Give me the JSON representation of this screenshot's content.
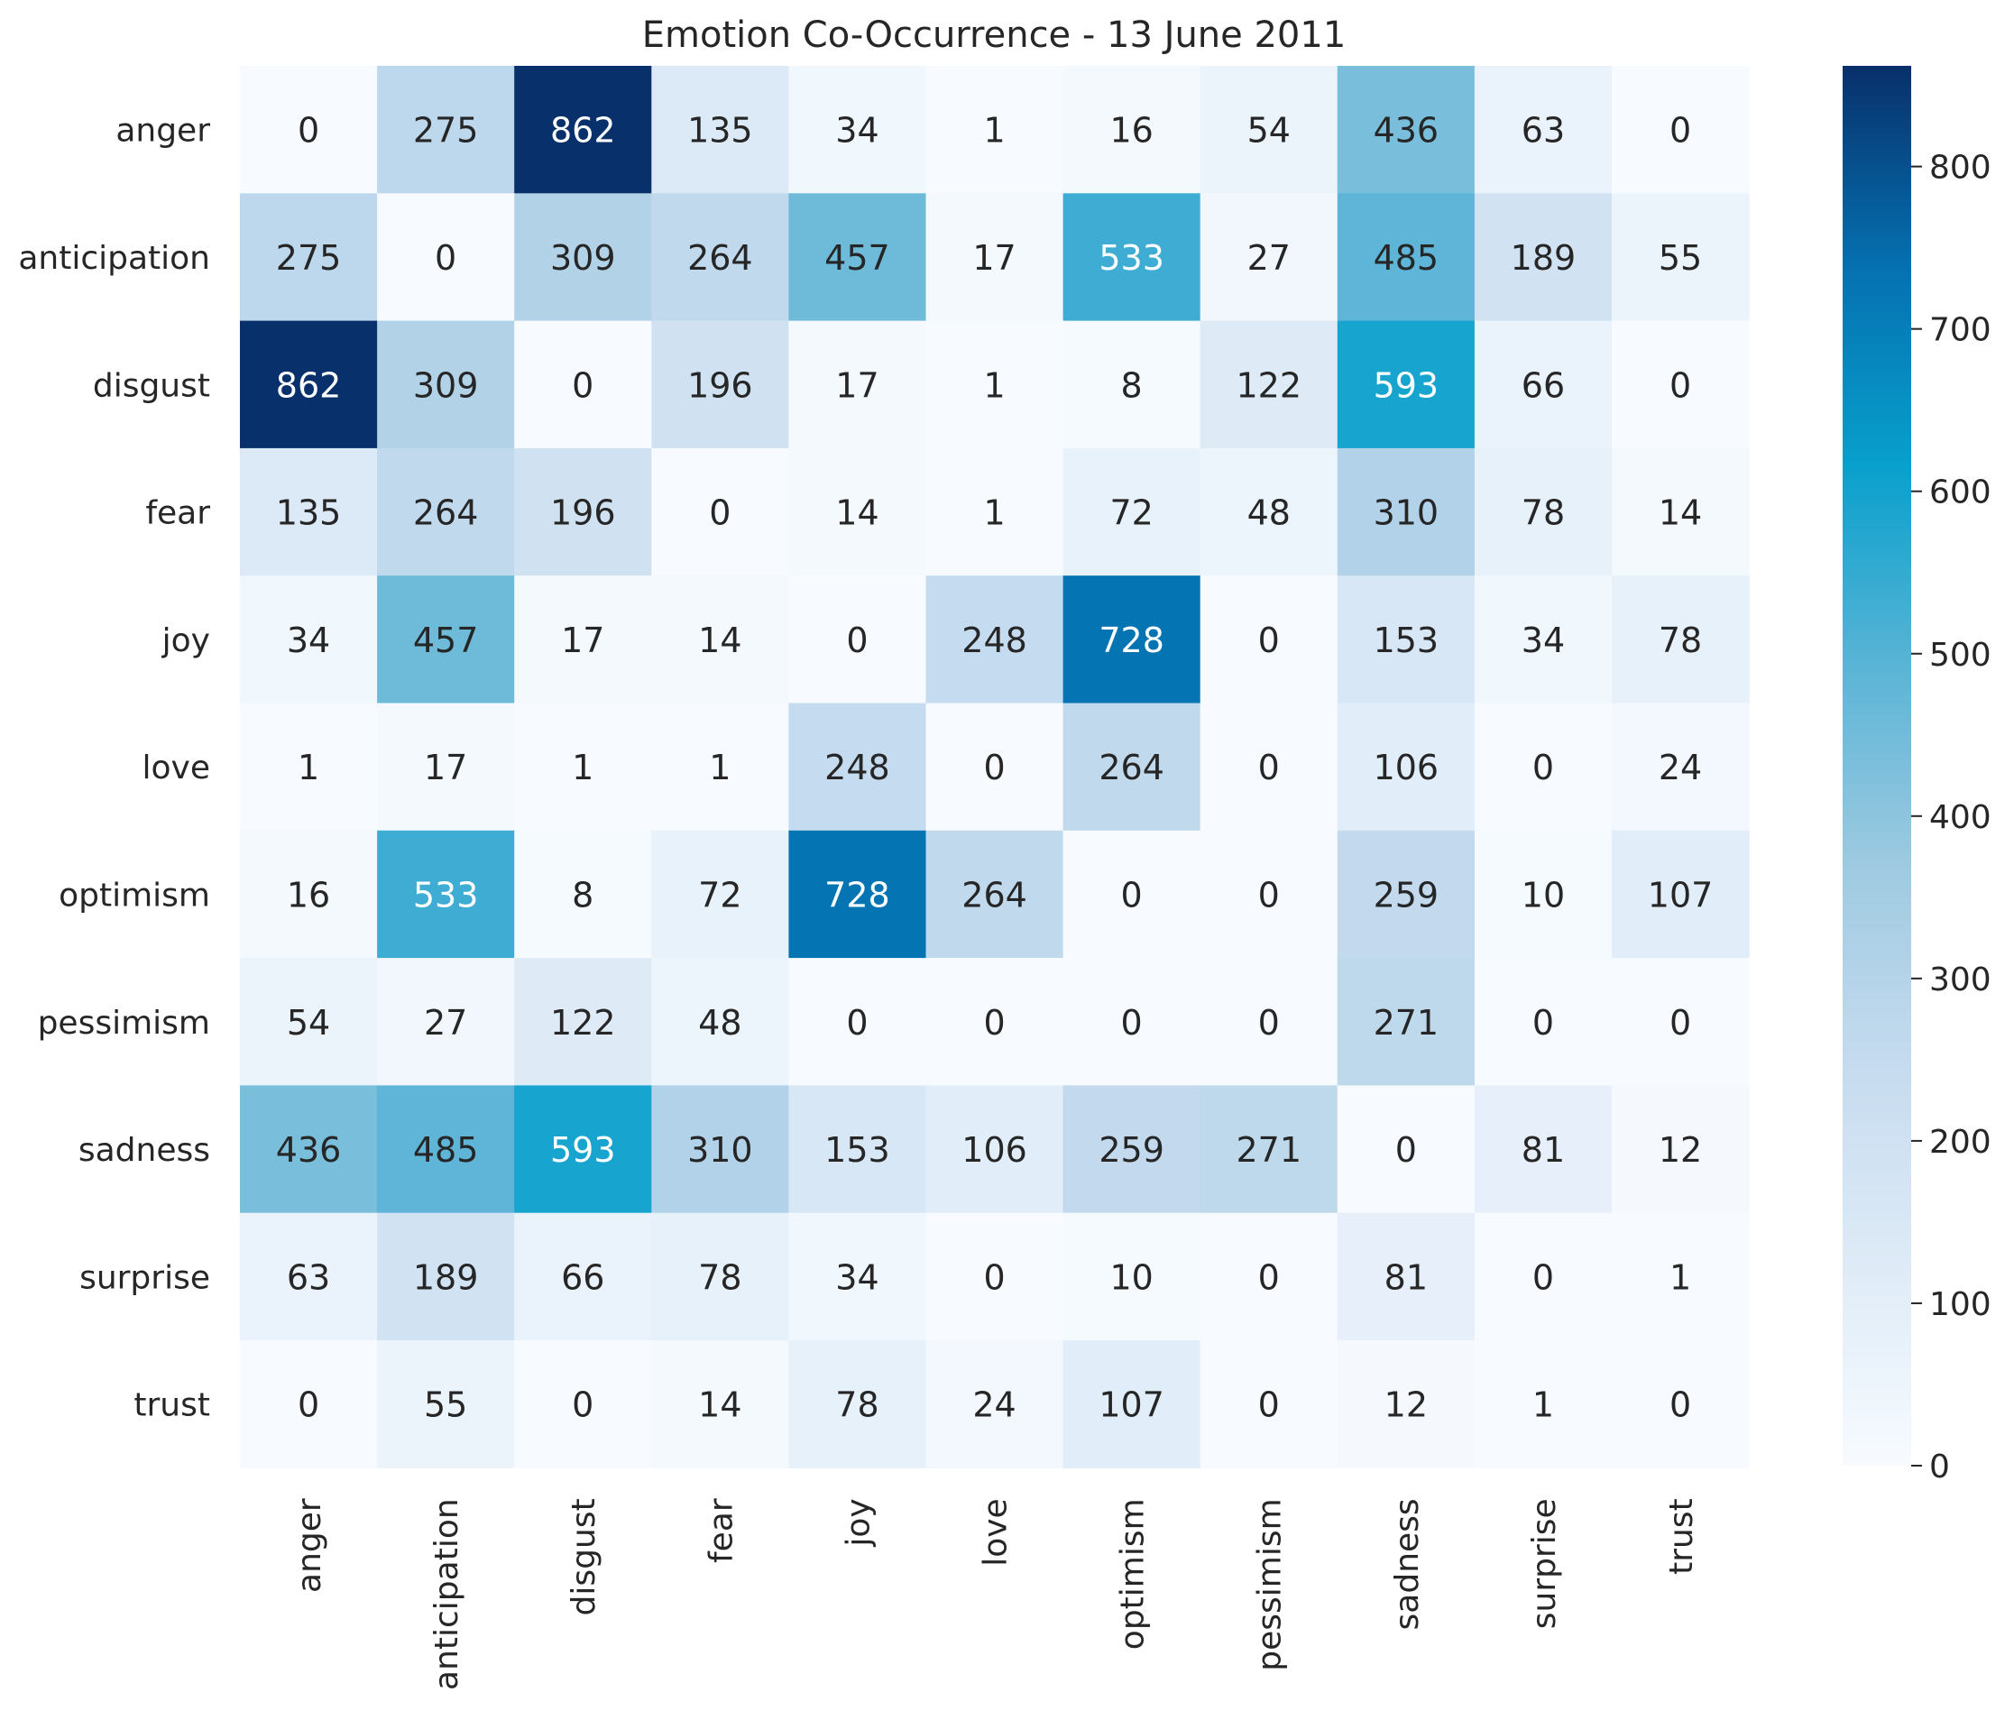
{
  "chart_data": {
    "type": "heatmap",
    "title": "Emotion Co-Occurrence - 13 June 2011",
    "xlabel": "",
    "ylabel": "",
    "x_categories": [
      "anger",
      "anticipation",
      "disgust",
      "fear",
      "joy",
      "love",
      "optimism",
      "pessimism",
      "sadness",
      "surprise",
      "trust"
    ],
    "y_categories": [
      "anger",
      "anticipation",
      "disgust",
      "fear",
      "joy",
      "love",
      "optimism",
      "pessimism",
      "sadness",
      "surprise",
      "trust"
    ],
    "values": [
      [
        0,
        275,
        862,
        135,
        34,
        1,
        16,
        54,
        436,
        63,
        0
      ],
      [
        275,
        0,
        309,
        264,
        457,
        17,
        533,
        27,
        485,
        189,
        55
      ],
      [
        862,
        309,
        0,
        196,
        17,
        1,
        8,
        122,
        593,
        66,
        0
      ],
      [
        135,
        264,
        196,
        0,
        14,
        1,
        72,
        48,
        310,
        78,
        14
      ],
      [
        34,
        457,
        17,
        14,
        0,
        248,
        728,
        0,
        153,
        34,
        78
      ],
      [
        1,
        17,
        1,
        1,
        248,
        0,
        264,
        0,
        106,
        0,
        24
      ],
      [
        16,
        533,
        8,
        72,
        728,
        264,
        0,
        0,
        259,
        10,
        107
      ],
      [
        54,
        27,
        122,
        48,
        0,
        0,
        0,
        0,
        271,
        0,
        0
      ],
      [
        436,
        485,
        593,
        310,
        153,
        106,
        259,
        271,
        0,
        81,
        12
      ],
      [
        63,
        189,
        66,
        78,
        34,
        0,
        10,
        0,
        81,
        0,
        1
      ],
      [
        0,
        55,
        0,
        14,
        78,
        24,
        107,
        0,
        12,
        1,
        0
      ]
    ],
    "colormap": "Blues",
    "color_stops": [
      "#f7fbff",
      "#deebf7",
      "#c6dbef",
      "#9ecae1",
      "#5ab4d6",
      "#08a0cc",
      "#0570b0",
      "#08306b"
    ],
    "vmin": 0,
    "vmax": 862,
    "colorbar_ticks": [
      0,
      100,
      200,
      300,
      400,
      500,
      600,
      700,
      800
    ],
    "grid": false,
    "legend": "colorbar-right"
  }
}
